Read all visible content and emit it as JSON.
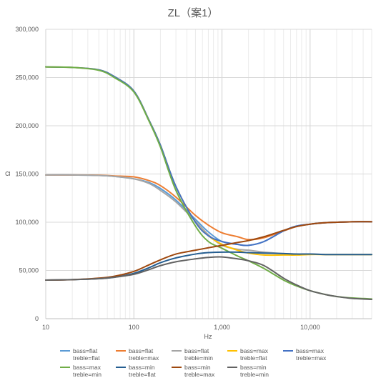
{
  "chart_data": {
    "type": "line",
    "title": "ZL（案1）",
    "xlabel": "Hz",
    "ylabel": "Ω",
    "x_scale": "log",
    "xlim": [
      10,
      50000
    ],
    "ylim": [
      0,
      300000
    ],
    "grid": true,
    "legend_position": "bottom",
    "x_ticks": [
      {
        "value": 10,
        "label": "10"
      },
      {
        "value": 100,
        "label": "100"
      },
      {
        "value": 1000,
        "label": "1,000"
      },
      {
        "value": 10000,
        "label": "10,000"
      }
    ],
    "y_ticks": [
      {
        "value": 0,
        "label": "0"
      },
      {
        "value": 50000,
        "label": "50,000"
      },
      {
        "value": 100000,
        "label": "100,000"
      },
      {
        "value": 150000,
        "label": "150,000"
      },
      {
        "value": 200000,
        "label": "200,000"
      },
      {
        "value": 250000,
        "label": "250,000"
      },
      {
        "value": 300000,
        "label": "300,000"
      }
    ],
    "x": [
      10,
      20,
      40,
      60,
      100,
      150,
      200,
      300,
      500,
      700,
      1000,
      1500,
      2000,
      3000,
      5000,
      7000,
      10000,
      15000,
      20000,
      30000,
      50000
    ],
    "series": [
      {
        "name": "bass=flat\ntreble=flat",
        "color": "#5B9BD5",
        "values": [
          149000,
          149000,
          148500,
          147500,
          145000,
          141000,
          135000,
          123000,
          103000,
          90000,
          80000,
          77000,
          76000,
          80000,
          91000,
          96000,
          98000,
          99500,
          100000,
          100500,
          100500
        ]
      },
      {
        "name": "bass=flat\ntreble=max",
        "color": "#ED7D31",
        "values": [
          149000,
          149000,
          148800,
          148000,
          147000,
          143000,
          138000,
          126000,
          107000,
          97000,
          89000,
          85000,
          82000,
          84000,
          91000,
          95500,
          98000,
          99500,
          100000,
          100500,
          100500
        ]
      },
      {
        "name": "bass=flat\ntreble=min",
        "color": "#A5A5A5",
        "values": [
          149000,
          149000,
          148500,
          147500,
          145000,
          140000,
          133000,
          121000,
          101000,
          87000,
          76000,
          72000,
          71000,
          69000,
          67500,
          67000,
          67000,
          66500,
          66500,
          66500,
          66500
        ]
      },
      {
        "name": "bass=max\ntreble=flat",
        "color": "#FFC000",
        "values": [
          261000,
          260500,
          258000,
          251000,
          236000,
          205000,
          180000,
          137000,
          100000,
          86000,
          77000,
          71000,
          68000,
          66000,
          66000,
          66000,
          66500,
          66500,
          66500,
          66500,
          66500
        ]
      },
      {
        "name": "bass=max\ntreble=max",
        "color": "#4472C4",
        "values": [
          261000,
          260500,
          258000,
          251000,
          236000,
          205000,
          180000,
          137000,
          100000,
          86000,
          80000,
          77000,
          76000,
          80000,
          91000,
          96000,
          98000,
          99500,
          100000,
          100500,
          100500
        ]
      },
      {
        "name": "bass=max\ntreble=min",
        "color": "#70AD47",
        "values": [
          261000,
          260500,
          257500,
          250000,
          235000,
          204000,
          178000,
          133000,
          96000,
          80000,
          73000,
          65000,
          60000,
          52000,
          40000,
          34000,
          29000,
          25000,
          23000,
          21500,
          20500
        ]
      },
      {
        "name": "bass=min\ntreble=flat",
        "color": "#255E91",
        "values": [
          40000,
          40500,
          41500,
          43000,
          47000,
          53000,
          58000,
          63000,
          67000,
          68500,
          69000,
          69000,
          68500,
          68000,
          67500,
          67000,
          67000,
          66500,
          66500,
          66500,
          66500
        ]
      },
      {
        "name": "bass=min\ntreble=max",
        "color": "#9E480E",
        "values": [
          40000,
          40500,
          42000,
          44000,
          49000,
          56000,
          61000,
          67000,
          71000,
          73500,
          76000,
          79000,
          81000,
          85000,
          91500,
          95500,
          98000,
          99500,
          100000,
          100500,
          100500
        ]
      },
      {
        "name": "bass=min\ntreble=min",
        "color": "#636363",
        "values": [
          40000,
          40500,
          41500,
          43000,
          46000,
          51000,
          55000,
          59000,
          62000,
          63500,
          64000,
          62000,
          60000,
          55000,
          42000,
          35000,
          29000,
          25000,
          23000,
          21000,
          20000
        ]
      }
    ]
  }
}
